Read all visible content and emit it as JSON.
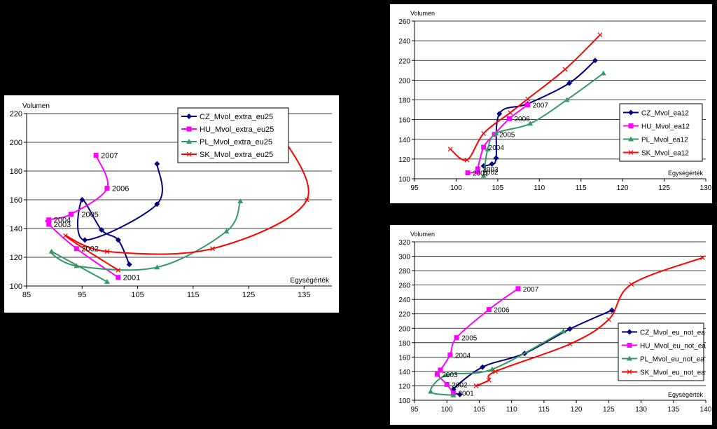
{
  "chart_data": [
    {
      "type": "line",
      "xlabel": "Egységérték",
      "ylabel": "Volumen",
      "xlim": [
        85,
        140
      ],
      "ylim": [
        100,
        220
      ],
      "xticks": [
        85,
        95,
        105,
        115,
        125,
        135
      ],
      "yticks": [
        100,
        120,
        140,
        160,
        180,
        200,
        220
      ],
      "grid": "horizontal",
      "legend": "top-right",
      "series": [
        {
          "name": "CZ_Mvol_extra_eu25",
          "color": "#000080",
          "marker": "diamond",
          "points": [
            [
              103.5,
              115
            ],
            [
              101.5,
              132
            ],
            [
              98.5,
              139
            ],
            [
              95,
              160
            ],
            [
              95.5,
              132
            ],
            [
              108.5,
              157
            ],
            [
              108.5,
              185
            ]
          ]
        },
        {
          "name": "HU_Mvol_extra_eu25",
          "color": "#FF00FF",
          "marker": "square",
          "points": [
            [
              101.5,
              106
            ],
            [
              94,
              126
            ],
            [
              89,
              143
            ],
            [
              89,
              146
            ],
            [
              93,
              150
            ],
            [
              99.5,
              168
            ],
            [
              97.5,
              191
            ]
          ]
        },
        {
          "name": "PL_Mvol_extra_eu25",
          "color": "#339966",
          "marker": "triangle",
          "points": [
            [
              99.5,
              103
            ],
            [
              89.5,
              124
            ],
            [
              94,
              114
            ],
            [
              108.5,
              113
            ],
            [
              121,
              138
            ],
            [
              123.5,
              159
            ]
          ]
        },
        {
          "name": "SK_Mvol_extra_eu25",
          "color": "#FF0000",
          "marker": "x",
          "points": [
            [
              101.5,
              111
            ],
            [
              92,
              135
            ],
            [
              99.5,
              124
            ],
            [
              118.5,
              126
            ],
            [
              135.5,
              160
            ],
            [
              129.5,
              213
            ]
          ]
        }
      ],
      "annotations": [
        {
          "text": "2007",
          "x": 97.5,
          "y": 191
        },
        {
          "text": "2006",
          "x": 99.5,
          "y": 168
        },
        {
          "text": "2005",
          "x": 94,
          "y": 150
        },
        {
          "text": "2004",
          "x": 89,
          "y": 146
        },
        {
          "text": "2003",
          "x": 89,
          "y": 143
        },
        {
          "text": "2002",
          "x": 94,
          "y": 126
        },
        {
          "text": "2001",
          "x": 101.5,
          "y": 106
        }
      ]
    },
    {
      "type": "line",
      "xlabel": "Egységérték",
      "ylabel": "Volumen",
      "xlim": [
        95,
        130
      ],
      "ylim": [
        100,
        260
      ],
      "xticks": [
        95,
        100,
        105,
        110,
        115,
        120,
        125,
        130
      ],
      "yticks": [
        100,
        120,
        140,
        160,
        180,
        200,
        220,
        240,
        260
      ],
      "grid": "horizontal",
      "legend": "right",
      "series": [
        {
          "name": "CZ_Mvol_ea12",
          "color": "#000080",
          "marker": "diamond",
          "points": [
            [
              103.3,
              113
            ],
            [
              104.3,
              115
            ],
            [
              104.8,
              121
            ],
            [
              105.2,
              166
            ],
            [
              108.6,
              176
            ],
            [
              113.6,
              197
            ],
            [
              116.7,
              220
            ]
          ]
        },
        {
          "name": "HU_Mvol_ea12",
          "color": "#FF00FF",
          "marker": "square",
          "points": [
            [
              101.4,
              106
            ],
            [
              102.6,
              107
            ],
            [
              102.6,
              110
            ],
            [
              103.3,
              132
            ],
            [
              104.6,
              145
            ],
            [
              106.4,
              161
            ],
            [
              108.6,
              175
            ]
          ]
        },
        {
          "name": "PL_Mvol_ea12",
          "color": "#339966",
          "marker": "triangle",
          "points": [
            [
              103.3,
              103
            ],
            [
              103.8,
              130
            ],
            [
              104.8,
              146
            ],
            [
              108.9,
              156
            ],
            [
              113.3,
              180
            ],
            [
              117.7,
              207
            ]
          ]
        },
        {
          "name": "SK_Mvol_ea12",
          "color": "#FF0000",
          "marker": "x",
          "points": [
            [
              99.3,
              130
            ],
            [
              101.3,
              119
            ],
            [
              103.3,
              146
            ],
            [
              106.5,
              167
            ],
            [
              108.6,
              181
            ],
            [
              113.1,
              211
            ],
            [
              117.3,
              246
            ]
          ]
        }
      ],
      "annotations": [
        {
          "text": "2007",
          "x": 108.6,
          "y": 175
        },
        {
          "text": "2006",
          "x": 106.4,
          "y": 161
        },
        {
          "text": "2005",
          "x": 104.6,
          "y": 145
        },
        {
          "text": "2004",
          "x": 103.3,
          "y": 132
        },
        {
          "text": "2003",
          "x": 102.6,
          "y": 110
        },
        {
          "text": "2002",
          "x": 102.6,
          "y": 107
        },
        {
          "text": "2001",
          "x": 101.4,
          "y": 106
        }
      ]
    },
    {
      "type": "line",
      "xlabel": "Egységérték",
      "ylabel": "Volumen",
      "xlim": [
        95,
        140
      ],
      "ylim": [
        100,
        320
      ],
      "xticks": [
        95,
        100,
        105,
        110,
        115,
        120,
        125,
        130,
        135,
        140
      ],
      "yticks": [
        100,
        120,
        140,
        160,
        180,
        200,
        220,
        240,
        260,
        280,
        300,
        320
      ],
      "grid": "horizontal",
      "legend": "right",
      "series": [
        {
          "name": "CZ_Mvol_eu_not_ea",
          "color": "#000080",
          "marker": "diamond",
          "points": [
            [
              102,
              108
            ],
            [
              101,
              115
            ],
            [
              105.5,
              146
            ],
            [
              112,
              165
            ],
            [
              119,
              199
            ],
            [
              125.5,
              225
            ]
          ]
        },
        {
          "name": "HU_Mvol_eu_not_ea",
          "color": "#FF00FF",
          "marker": "square",
          "points": [
            [
              101,
              110
            ],
            [
              100,
              122
            ],
            [
              98.5,
              136
            ],
            [
              99,
              142
            ],
            [
              100.5,
              163
            ],
            [
              101.5,
              187
            ],
            [
              106.5,
              226
            ],
            [
              111,
              255
            ]
          ]
        },
        {
          "name": "PL_Mvol_eu_not_ea",
          "color": "#339966",
          "marker": "triangle",
          "points": [
            [
              101,
              107
            ],
            [
              97.5,
              112
            ],
            [
              100,
              135
            ],
            [
              107,
              143
            ],
            [
              118,
              196
            ]
          ]
        },
        {
          "name": "SK_Mvol_eu_not_ea",
          "color": "#FF0000",
          "marker": "x",
          "points": [
            [
              104.5,
              120
            ],
            [
              106.5,
              128
            ],
            [
              107.5,
              140
            ],
            [
              119,
              178
            ],
            [
              125,
              212
            ],
            [
              128.5,
              261
            ],
            [
              139.5,
              298
            ]
          ]
        }
      ],
      "annotations": [
        {
          "text": "2007",
          "x": 111,
          "y": 255
        },
        {
          "text": "2006",
          "x": 106.5,
          "y": 226
        },
        {
          "text": "2005",
          "x": 101.5,
          "y": 187
        },
        {
          "text": "2004",
          "x": 100.5,
          "y": 163
        },
        {
          "text": "2003",
          "x": 98.5,
          "y": 136
        },
        {
          "text": "2002",
          "x": 100,
          "y": 122
        },
        {
          "text": "2001",
          "x": 101,
          "y": 110
        }
      ]
    }
  ]
}
